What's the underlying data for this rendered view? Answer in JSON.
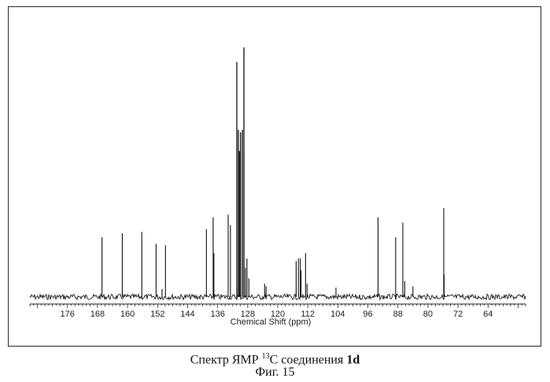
{
  "chart_data": {
    "type": "line",
    "xlabel": "Chemical Shift (ppm)",
    "x_reversed": true,
    "xlim": [
      186,
      54
    ],
    "ylim": [
      0,
      1
    ],
    "x_ticks": [
      176,
      168,
      160,
      152,
      144,
      136,
      128,
      120,
      112,
      104,
      96,
      88,
      80,
      72,
      64
    ],
    "grid": false,
    "peaks": [
      {
        "x": 166.8,
        "y": 0.225
      },
      {
        "x": 161.4,
        "y": 0.24
      },
      {
        "x": 156.2,
        "y": 0.245
      },
      {
        "x": 152.4,
        "y": 0.2
      },
      {
        "x": 149.9,
        "y": 0.195
      },
      {
        "x": 150.8,
        "y": 0.03
      },
      {
        "x": 139.0,
        "y": 0.255
      },
      {
        "x": 137.2,
        "y": 0.3
      },
      {
        "x": 137.0,
        "y": 0.165
      },
      {
        "x": 133.2,
        "y": 0.31
      },
      {
        "x": 132.6,
        "y": 0.27
      },
      {
        "x": 130.9,
        "y": 0.885
      },
      {
        "x": 130.5,
        "y": 0.63
      },
      {
        "x": 130.2,
        "y": 0.55
      },
      {
        "x": 129.9,
        "y": 0.62
      },
      {
        "x": 129.4,
        "y": 0.63
      },
      {
        "x": 129.0,
        "y": 0.94
      },
      {
        "x": 128.6,
        "y": 0.11
      },
      {
        "x": 128.2,
        "y": 0.145
      },
      {
        "x": 127.7,
        "y": 0.07
      },
      {
        "x": 123.5,
        "y": 0.05
      },
      {
        "x": 123.1,
        "y": 0.04
      },
      {
        "x": 115.1,
        "y": 0.135
      },
      {
        "x": 114.5,
        "y": 0.145
      },
      {
        "x": 114.0,
        "y": 0.145
      },
      {
        "x": 113.8,
        "y": 0.1
      },
      {
        "x": 112.6,
        "y": 0.165
      },
      {
        "x": 112.2,
        "y": 0.05
      },
      {
        "x": 104.5,
        "y": 0.035
      },
      {
        "x": 93.3,
        "y": 0.3
      },
      {
        "x": 88.6,
        "y": 0.225
      },
      {
        "x": 86.7,
        "y": 0.28
      },
      {
        "x": 86.2,
        "y": 0.06
      },
      {
        "x": 84.0,
        "y": 0.04
      },
      {
        "x": 75.8,
        "y": 0.335
      },
      {
        "x": 75.7,
        "y": 0.085
      }
    ]
  },
  "caption": {
    "prefix": "Спектр ЯМР ",
    "isotope": "13",
    "element_and_word": "С соединения ",
    "compound": "1d"
  },
  "figure_label": "Фиг. 15"
}
